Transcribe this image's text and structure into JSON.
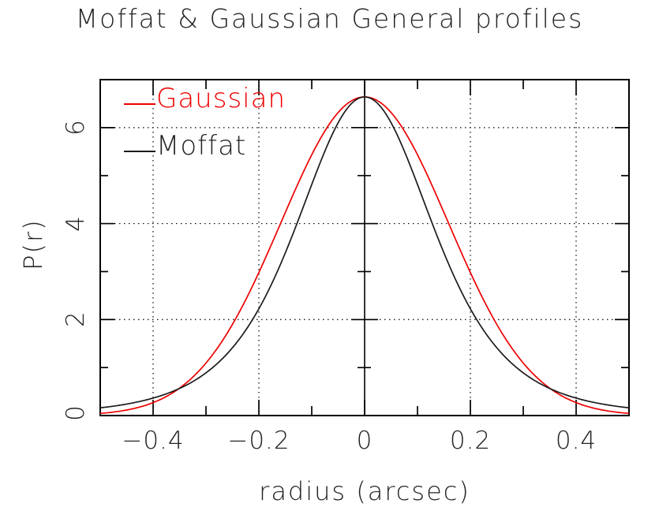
{
  "title": "Moffat & Gaussian General profiles",
  "colors": {
    "gaussian": "#ee0000",
    "moffat": "#1b1b1b",
    "frame": "#000000",
    "background": "#ffffff"
  },
  "axes": {
    "x": {
      "label": "radius (arcsec)",
      "min": -0.5,
      "max": 0.5,
      "major_ticks": [
        -0.4,
        -0.2,
        0,
        0.2,
        0.4
      ],
      "minor_ticks": [
        -0.3,
        -0.1,
        0.1,
        0.3
      ],
      "grid_lines": [
        -0.4,
        -0.2,
        0.2,
        0.4
      ],
      "tick_labels": [
        "−0.4",
        "−0.2",
        "0",
        "0.2",
        "0.4"
      ]
    },
    "y": {
      "label": "P(r)",
      "min": 0,
      "max": 7,
      "major_ticks": [
        2,
        4,
        6
      ],
      "minor_ticks": [
        1,
        3,
        5
      ],
      "grid_lines": [
        2,
        4,
        6
      ],
      "tick_labels": [
        "0",
        "2",
        "4",
        "6"
      ],
      "tick_label_values": [
        0,
        2,
        4,
        6
      ]
    },
    "center_axis": {
      "x": 0,
      "major_ticks": [
        2,
        4,
        6
      ],
      "minor_ticks": [
        1,
        3,
        5
      ]
    }
  },
  "legend": {
    "position": "top-left",
    "items": [
      {
        "label": "Gaussian",
        "color": "#ee0000"
      },
      {
        "label": "Moffat",
        "color": "#1b1b1b"
      }
    ]
  },
  "chart_data": {
    "type": "line",
    "title": "Moffat & Gaussian General profiles",
    "xlabel": "radius (arcsec)",
    "ylabel": "P(r)",
    "xlim": [
      -0.5,
      0.5
    ],
    "ylim": [
      0,
      7
    ],
    "grid": "dotted at labeled ticks",
    "legend_position": "top-left",
    "x": [
      -0.5,
      -0.45,
      -0.4,
      -0.35,
      -0.3,
      -0.25,
      -0.2,
      -0.15,
      -0.1,
      -0.05,
      0,
      0.05,
      0.1,
      0.15,
      0.2,
      0.25,
      0.3,
      0.35,
      0.4,
      0.45,
      0.5
    ],
    "series": [
      {
        "name": "Gaussian",
        "color": "#ee0000",
        "model": "gaussian",
        "amplitude": 6.64,
        "sigma": 0.158,
        "values": [
          0.04,
          0.12,
          0.27,
          0.57,
          1.1,
          1.9,
          2.98,
          4.23,
          5.44,
          6.32,
          6.64,
          6.32,
          5.44,
          4.23,
          2.98,
          1.9,
          1.1,
          0.57,
          0.27,
          0.12,
          0.04
        ]
      },
      {
        "name": "Moffat",
        "color": "#1b1b1b",
        "model": "moffat",
        "amplitude": 6.64,
        "alpha": 0.27,
        "beta": 2.5,
        "values": [
          0.16,
          0.24,
          0.36,
          0.56,
          0.89,
          1.41,
          2.22,
          3.39,
          4.82,
          6.1,
          6.64,
          6.1,
          4.82,
          3.39,
          2.22,
          1.41,
          0.89,
          0.56,
          0.36,
          0.24,
          0.16
        ]
      }
    ]
  }
}
